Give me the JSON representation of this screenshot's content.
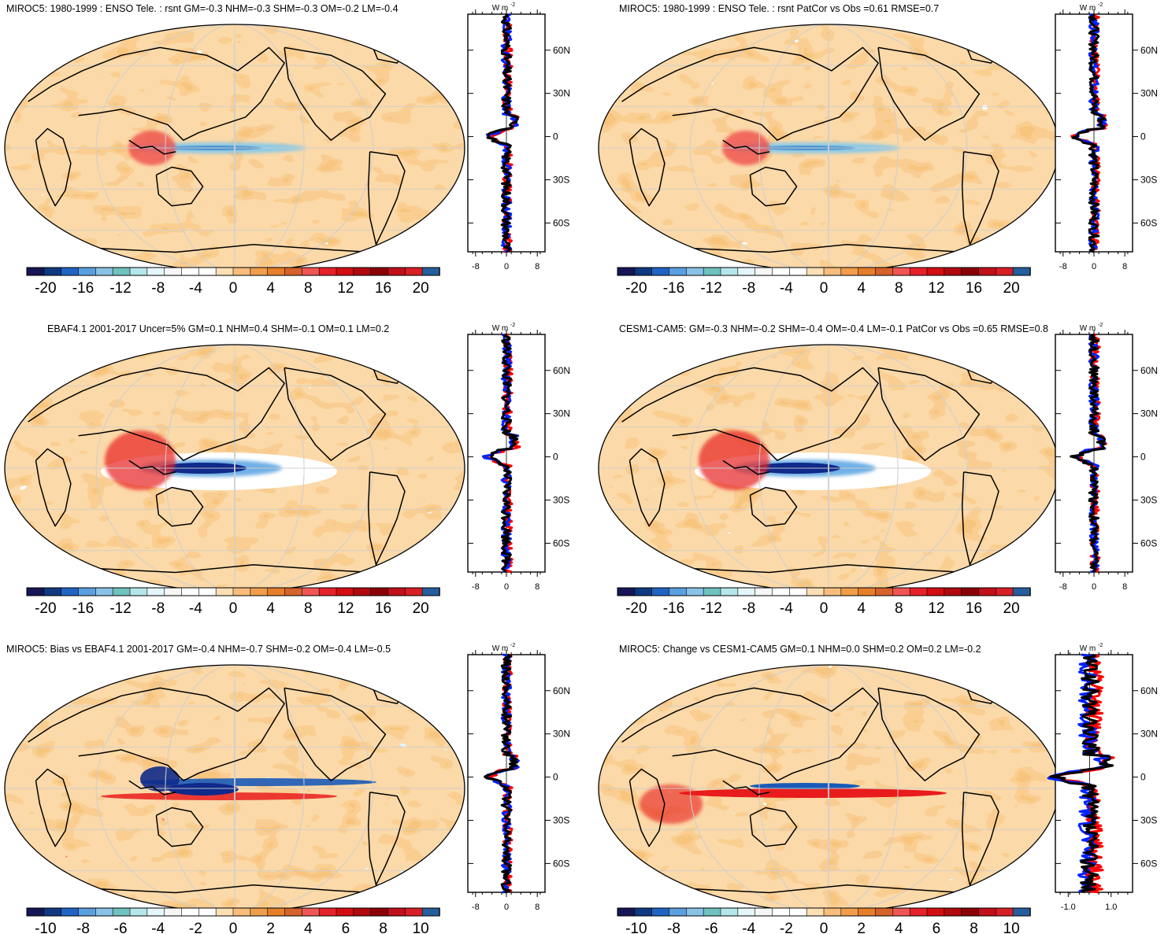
{
  "figure": {
    "unit_label": "W m",
    "unit_exponent": "-2"
  },
  "chart_data": [
    {
      "type": "heatmap",
      "title": "MIROC5: 1980-1999 : ENSO Tele. : rsnt GM=-0.3 NHM=-0.3 SHM=-0.3 OM=-0.2 LM=-0.4",
      "colorbar": {
        "min": -22,
        "max": 22,
        "step": 2,
        "ticks": [
          -20,
          -16,
          -12,
          -8,
          -4,
          0,
          4,
          8,
          12,
          16,
          20
        ],
        "tick_labels": [
          "-20",
          "-16",
          "-12",
          "-8",
          "-4",
          "0",
          "4",
          "8",
          "12",
          "16",
          "20"
        ]
      },
      "zonal_profile": {
        "type": "line",
        "x_ticks": [
          -8,
          0,
          8
        ],
        "x_tick_labels": [
          "-8",
          "0",
          "8"
        ],
        "xlim": [
          -10,
          10
        ],
        "y_ticks": [
          60,
          30,
          0,
          -30,
          -60
        ],
        "y_tick_labels": [
          "60N",
          "30N",
          "0",
          "30S",
          "60S"
        ],
        "ylim": [
          -80,
          85
        ],
        "series": [
          "red",
          "blue",
          "black"
        ]
      },
      "patterns": [
        "enso_mixed"
      ]
    },
    {
      "type": "heatmap",
      "title": "MIROC5: 1980-1999 : ENSO Tele. : rsnt PatCor vs Obs =0.61 RMSE=0.7",
      "colorbar": {
        "min": -22,
        "max": 22,
        "step": 2,
        "ticks": [
          -20,
          -16,
          -12,
          -8,
          -4,
          0,
          4,
          8,
          12,
          16,
          20
        ],
        "tick_labels": [
          "-20",
          "-16",
          "-12",
          "-8",
          "-4",
          "0",
          "4",
          "8",
          "12",
          "16",
          "20"
        ]
      },
      "zonal_profile": {
        "type": "line",
        "x_ticks": [
          -8,
          0,
          8
        ],
        "x_tick_labels": [
          "-8",
          "0",
          "8"
        ],
        "xlim": [
          -10,
          10
        ],
        "y_ticks": [
          60,
          30,
          0,
          -30,
          -60
        ],
        "y_tick_labels": [
          "60N",
          "30N",
          "0",
          "30S",
          "60S"
        ],
        "ylim": [
          -80,
          85
        ],
        "series": [
          "red",
          "blue",
          "black"
        ]
      },
      "patterns": [
        "enso_mixed"
      ]
    },
    {
      "type": "heatmap",
      "title": "EBAF4.1 2001-2017 Uncer=5% GM=0.1 NHM=0.4 SHM=-0.1 OM=0.1 LM=0.2",
      "colorbar": {
        "min": -22,
        "max": 22,
        "step": 2,
        "ticks": [
          -20,
          -16,
          -12,
          -8,
          -4,
          0,
          4,
          8,
          12,
          16,
          20
        ],
        "tick_labels": [
          "-20",
          "-16",
          "-12",
          "-8",
          "-4",
          "0",
          "4",
          "8",
          "12",
          "16",
          "20"
        ]
      },
      "zonal_profile": {
        "type": "line",
        "x_ticks": [
          -8,
          0,
          8
        ],
        "x_tick_labels": [
          "-8",
          "0",
          "8"
        ],
        "xlim": [
          -10,
          10
        ],
        "y_ticks": [
          60,
          30,
          0,
          -30,
          -60
        ],
        "y_tick_labels": [
          "60N",
          "30N",
          "0",
          "30S",
          "60S"
        ],
        "ylim": [
          -80,
          85
        ],
        "series": [
          "red",
          "blue",
          "black"
        ]
      },
      "patterns": [
        "enso_strong"
      ]
    },
    {
      "type": "heatmap",
      "title": "CESM1-CAM5: GM=-0.3 NHM=-0.2 SHM=-0.4 OM=-0.4 LM=-0.1 PatCor vs Obs =0.65 RMSE=0.8",
      "colorbar": {
        "min": -22,
        "max": 22,
        "step": 2,
        "ticks": [
          -20,
          -16,
          -12,
          -8,
          -4,
          0,
          4,
          8,
          12,
          16,
          20
        ],
        "tick_labels": [
          "-20",
          "-16",
          "-12",
          "-8",
          "-4",
          "0",
          "4",
          "8",
          "12",
          "16",
          "20"
        ]
      },
      "zonal_profile": {
        "type": "line",
        "x_ticks": [
          -8,
          0,
          8
        ],
        "x_tick_labels": [
          "-8",
          "0",
          "8"
        ],
        "xlim": [
          -10,
          10
        ],
        "y_ticks": [
          60,
          30,
          0,
          -30,
          -60
        ],
        "y_tick_labels": [
          "60N",
          "30N",
          "0",
          "30S",
          "60S"
        ],
        "ylim": [
          -80,
          85
        ],
        "series": [
          "red",
          "blue",
          "black"
        ]
      },
      "patterns": [
        "enso_strong"
      ]
    },
    {
      "type": "heatmap",
      "title": "MIROC5: Bias vs EBAF4.1 2001-2017 GM=-0.4 NHM=-0.7 SHM=-0.2 OM=-0.4 LM=-0.5",
      "colorbar": {
        "min": -11,
        "max": 11,
        "step": 1,
        "ticks": [
          -10,
          -8,
          -6,
          -4,
          -2,
          0,
          2,
          4,
          6,
          8,
          10
        ],
        "tick_labels": [
          "-10",
          "-8",
          "-6",
          "-4",
          "-2",
          "0",
          "2",
          "4",
          "6",
          "8",
          "10"
        ]
      },
      "zonal_profile": {
        "type": "line",
        "x_ticks": [
          -8,
          0,
          8
        ],
        "x_tick_labels": [
          "-8",
          "0",
          "8"
        ],
        "xlim": [
          -10,
          10
        ],
        "y_ticks": [
          60,
          30,
          0,
          -30,
          -60
        ],
        "y_tick_labels": [
          "60N",
          "30N",
          "0",
          "30S",
          "60S"
        ],
        "ylim": [
          -80,
          85
        ],
        "series": [
          "red",
          "blue",
          "black"
        ]
      },
      "patterns": [
        "bias"
      ]
    },
    {
      "type": "heatmap",
      "title": "MIROC5: Change vs CESM1-CAM5 GM=0.1 NHM=0.0 SHM=0.2 OM=0.2 LM=-0.2",
      "colorbar": {
        "min": -11,
        "max": 11,
        "step": 1,
        "ticks": [
          -10,
          -8,
          -6,
          -4,
          -2,
          0,
          2,
          4,
          6,
          8,
          10
        ],
        "tick_labels": [
          "-10",
          "-8",
          "-6",
          "-4",
          "-2",
          "0",
          "2",
          "4",
          "6",
          "8",
          "10"
        ]
      },
      "zonal_profile": {
        "type": "line",
        "x_ticks": [
          -1.0,
          1.0
        ],
        "x_tick_labels": [
          "-1.0",
          "1.0"
        ],
        "xlim": [
          -1.6,
          2.0
        ],
        "y_ticks": [
          60,
          30,
          0,
          -30,
          -60
        ],
        "y_tick_labels": [
          "60N",
          "30N",
          "0",
          "30S",
          "60S"
        ],
        "ylim": [
          -80,
          85
        ],
        "series": [
          "red",
          "blue",
          "black"
        ]
      },
      "patterns": [
        "change"
      ]
    }
  ],
  "palette": [
    "#0b0c5e",
    "#0f2a8a",
    "#1a5ab8",
    "#3d86d9",
    "#6fb0e6",
    "#7fc6c4",
    "#b7e9f0",
    "#e6f7fb",
    "#f3f4f4",
    "#ffffff",
    "#ffffff",
    "#fde0b6",
    "#f9c07f",
    "#f29b45",
    "#e8802c",
    "#d9612a",
    "#ee5050",
    "#e81c1c",
    "#c40c0c",
    "#980018",
    "#6b0008",
    "#ab0a1e",
    "#d01a1a",
    "#e21f1f"
  ],
  "colorbar_cells": [
    "#161556",
    "#0f3a82",
    "#1f64c2",
    "#5aa0e0",
    "#89c2e6",
    "#6fc2be",
    "#b4e6ea",
    "#e4f6fa",
    "#f6f6f6",
    "#ffffff",
    "#ffffff",
    "#fddfb5",
    "#f8bd7c",
    "#f09e4c",
    "#e67e2a",
    "#d5632b",
    "#f05555",
    "#e6212a",
    "#d20e10",
    "#b00a0f",
    "#8a0008",
    "#c0101a",
    "#d81f25",
    "#245e9c"
  ]
}
